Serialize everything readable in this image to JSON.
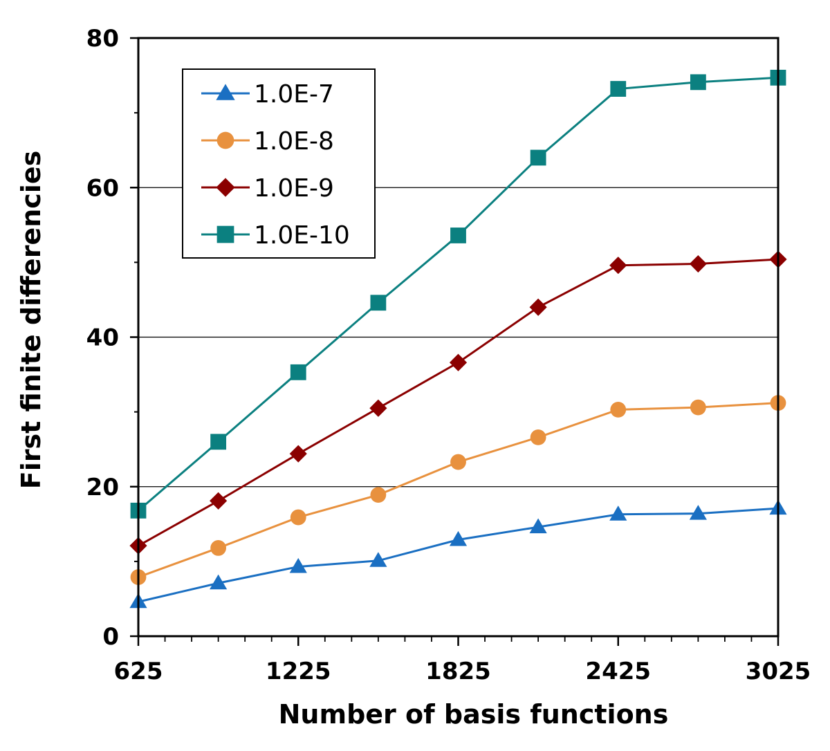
{
  "chart_data": {
    "type": "line",
    "xlabel": "Number of basis functions",
    "ylabel": "First finite differencies",
    "xlim": [
      625,
      3025
    ],
    "ylim": [
      0,
      80
    ],
    "x_ticks": [
      "625",
      "1225",
      "1825",
      "2425",
      "3025"
    ],
    "y_ticks": [
      "0",
      "20",
      "40",
      "60",
      "80"
    ],
    "grid": "horizontal",
    "legend_position": "top-left",
    "x": [
      625,
      925,
      1225,
      1525,
      1825,
      2125,
      2425,
      2725,
      3025
    ],
    "series": [
      {
        "name": "1.0E-7",
        "color": "#1a6fc2",
        "marker": "triangle",
        "values": [
          4.6,
          7.1,
          9.3,
          10.1,
          12.9,
          14.6,
          16.3,
          16.4,
          17.1
        ]
      },
      {
        "name": "1.0E-8",
        "color": "#e8913e",
        "marker": "circle",
        "values": [
          7.9,
          11.8,
          15.9,
          18.9,
          23.3,
          26.6,
          30.3,
          30.6,
          31.2
        ]
      },
      {
        "name": "1.0E-9",
        "color": "#8b0000",
        "marker": "diamond",
        "values": [
          12.1,
          18.1,
          24.4,
          30.5,
          36.6,
          44.0,
          49.6,
          49.8,
          50.4
        ]
      },
      {
        "name": "1.0E-10",
        "color": "#0b8080",
        "marker": "square",
        "values": [
          16.8,
          26.0,
          35.3,
          44.6,
          53.6,
          64.0,
          73.2,
          74.1,
          74.7
        ]
      }
    ]
  }
}
